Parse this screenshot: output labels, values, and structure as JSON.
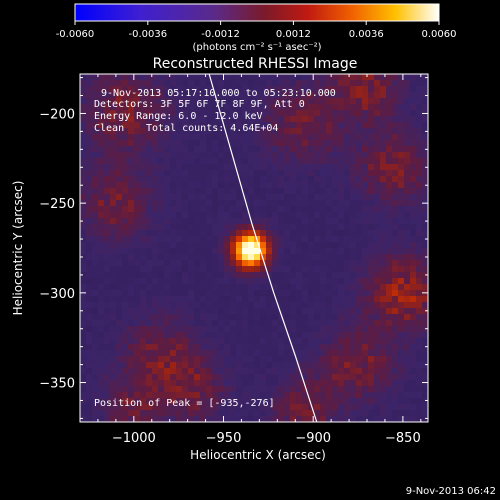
{
  "window": {
    "timestamp": "9-Nov-2013 06:42"
  },
  "colorbar": {
    "ticks": [
      "-0.0060",
      "-0.0036",
      "-0.0012",
      "0.0012",
      "0.0036",
      "0.0060"
    ],
    "tick_values": [
      -0.006,
      -0.0036,
      -0.0012,
      0.0012,
      0.0036,
      0.006
    ],
    "range": [
      -0.006,
      0.006
    ],
    "unit_label": "(photons cm⁻² s⁻¹ asec⁻²)",
    "colormap": "blue-purple-red-yellow-white"
  },
  "chart_data": {
    "type": "heatmap",
    "title": "Reconstructed RHESSI Image",
    "xlabel": "Heliocentric X (arcsec)",
    "ylabel": "Heliocentric Y (arcsec)",
    "xlim": [
      -1030,
      -836
    ],
    "ylim": [
      -372,
      -178
    ],
    "xticks": [
      -1000,
      -950,
      -900,
      -850
    ],
    "yticks": [
      -200,
      -250,
      -300,
      -350
    ],
    "xtick_labels": [
      "−1000",
      "−950",
      "−900",
      "−850"
    ],
    "ytick_labels": [
      "−200",
      "−250",
      "−300",
      "−350"
    ],
    "background_color": "#3a2466",
    "annotations": {
      "time_range": "9-Nov-2013 05:17:10.000 to 05:23:10.000",
      "detectors": "Detectors: 3F 5F 6F 7F 8F 9F, Att 0",
      "energy_range": "Energy Range: 6.0 - 12.0 keV",
      "method": "Clean",
      "total_counts": "Total counts: 4.64E+04",
      "peak_label": "Position of Peak = [-935,-276]"
    },
    "peak": {
      "x": -935,
      "y": -276
    },
    "limb_curve": [
      [
        -958,
        -178
      ],
      [
        -946,
        -220
      ],
      [
        -934,
        -262
      ],
      [
        -922,
        -300
      ],
      [
        -910,
        -335
      ],
      [
        -898,
        -372
      ]
    ],
    "sources": [
      {
        "x": -935,
        "y": -276,
        "amplitude": 1.0,
        "sigma": 7
      }
    ],
    "features": [
      {
        "x": -1005,
        "y": -200,
        "amplitude": 0.22,
        "sigma": 16
      },
      {
        "x": -1010,
        "y": -250,
        "amplitude": 0.2,
        "sigma": 14
      },
      {
        "x": -985,
        "y": -335,
        "amplitude": 0.22,
        "sigma": 14
      },
      {
        "x": -1000,
        "y": -365,
        "amplitude": 0.18,
        "sigma": 12
      },
      {
        "x": -905,
        "y": -205,
        "amplitude": 0.2,
        "sigma": 15
      },
      {
        "x": -870,
        "y": -185,
        "amplitude": 0.24,
        "sigma": 13
      },
      {
        "x": -855,
        "y": -230,
        "amplitude": 0.22,
        "sigma": 14
      },
      {
        "x": -850,
        "y": -300,
        "amplitude": 0.3,
        "sigma": 14
      },
      {
        "x": -875,
        "y": -340,
        "amplitude": 0.22,
        "sigma": 14
      },
      {
        "x": -905,
        "y": -365,
        "amplitude": 0.2,
        "sigma": 12
      },
      {
        "x": -965,
        "y": -355,
        "amplitude": 0.18,
        "sigma": 12
      }
    ]
  }
}
